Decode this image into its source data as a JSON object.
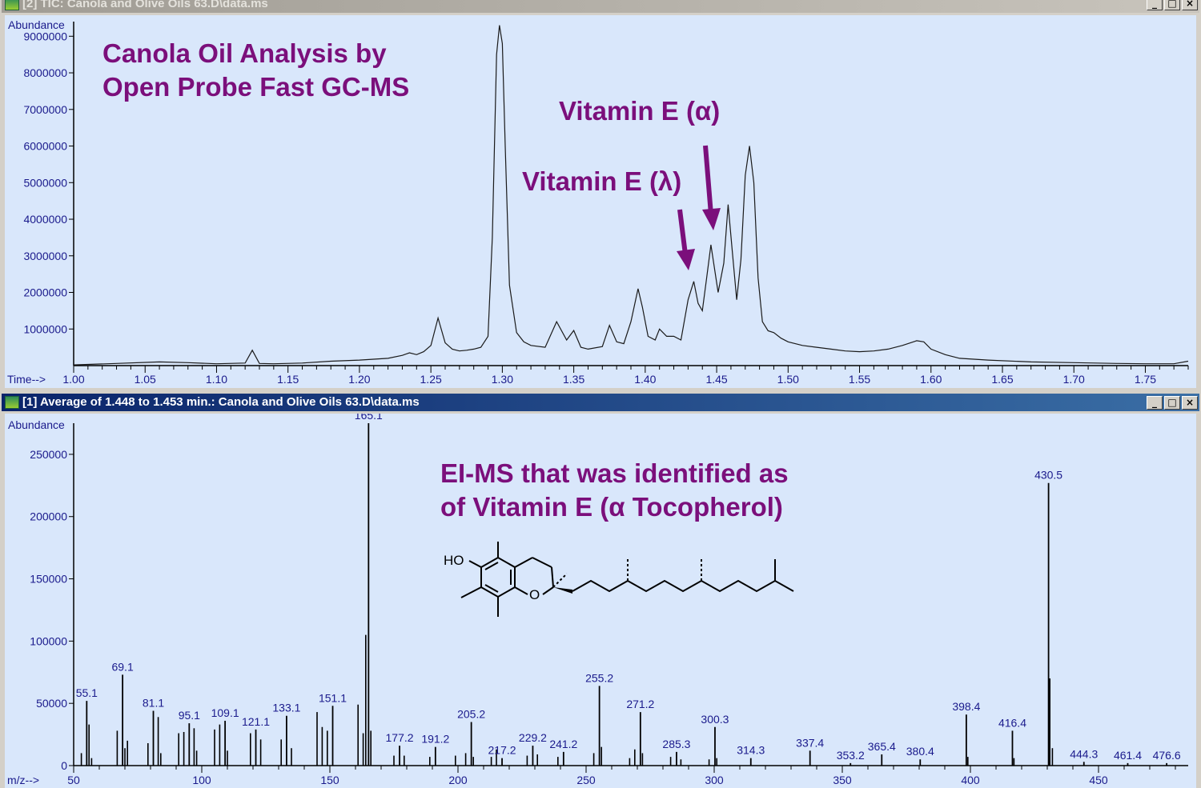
{
  "top_window": {
    "title": "[2]  TIC: Canola and Olive Oils 63.D\\data.ms",
    "buttons": [
      "_",
      "□",
      "×"
    ]
  },
  "bottom_window": {
    "title": "[1] Average of 1.448 to 1.453 min.: Canola and Olive Oils 63.D\\data.ms",
    "buttons": [
      "_",
      "□",
      "×"
    ]
  },
  "annotations": {
    "title_line1": "Canola Oil Analysis by",
    "title_line2": "Open Probe Fast GC-MS",
    "vitamin_alpha": "Vitamin E (α)",
    "vitamin_lambda": "Vitamin E (λ)",
    "ms_line1": "EI-MS that was identified as",
    "ms_line2": "of Vitamin E (α Tocopherol)",
    "structure_ho": "HO",
    "structure_o": "O",
    "arrow_color": "#7b0f7b"
  },
  "chart_data": [
    {
      "type": "line",
      "xlabel": "Time-->",
      "ylabel": "Abundance",
      "xlim": [
        1.0,
        1.78
      ],
      "ylim": [
        0,
        9400000
      ],
      "xticks": [
        "1.00",
        "1.05",
        "1.10",
        "1.15",
        "1.20",
        "1.25",
        "1.30",
        "1.35",
        "1.40",
        "1.45",
        "1.50",
        "1.55",
        "1.60",
        "1.65",
        "1.70",
        "1.75"
      ],
      "yticks": [
        "1000000",
        "2000000",
        "3000000",
        "4000000",
        "5000000",
        "6000000",
        "7000000",
        "8000000",
        "9000000"
      ],
      "series": [
        {
          "x": [
            1.0,
            1.03,
            1.06,
            1.08,
            1.1,
            1.12,
            1.125,
            1.13,
            1.14,
            1.16,
            1.18,
            1.2,
            1.22,
            1.23,
            1.235,
            1.24,
            1.245,
            1.25,
            1.255,
            1.26,
            1.265,
            1.27,
            1.275,
            1.28,
            1.285,
            1.29,
            1.293,
            1.296,
            1.298,
            1.3,
            1.302,
            1.305,
            1.31,
            1.315,
            1.32,
            1.33,
            1.338,
            1.345,
            1.35,
            1.355,
            1.36,
            1.37,
            1.375,
            1.38,
            1.385,
            1.39,
            1.395,
            1.398,
            1.402,
            1.407,
            1.41,
            1.415,
            1.42,
            1.425,
            1.43,
            1.434,
            1.437,
            1.44,
            1.443,
            1.446,
            1.451,
            1.455,
            1.458,
            1.461,
            1.464,
            1.467,
            1.47,
            1.473,
            1.476,
            1.479,
            1.482,
            1.486,
            1.49,
            1.495,
            1.5,
            1.51,
            1.52,
            1.53,
            1.54,
            1.55,
            1.56,
            1.57,
            1.58,
            1.59,
            1.595,
            1.6,
            1.61,
            1.62,
            1.64,
            1.67,
            1.7,
            1.73,
            1.75,
            1.77,
            1.78
          ],
          "y": [
            20000,
            60000,
            100000,
            80000,
            50000,
            70000,
            420000,
            60000,
            50000,
            70000,
            120000,
            150000,
            200000,
            280000,
            350000,
            300000,
            380000,
            550000,
            1300000,
            620000,
            450000,
            400000,
            420000,
            450000,
            500000,
            800000,
            3500000,
            8500000,
            9300000,
            8800000,
            6000000,
            2200000,
            900000,
            650000,
            550000,
            500000,
            1200000,
            700000,
            960000,
            500000,
            450000,
            520000,
            1100000,
            650000,
            600000,
            1200000,
            2100000,
            1600000,
            800000,
            700000,
            1000000,
            800000,
            800000,
            700000,
            1800000,
            2300000,
            1700000,
            1500000,
            2400000,
            3300000,
            2000000,
            2800000,
            4400000,
            3100000,
            1800000,
            2900000,
            5200000,
            6000000,
            5000000,
            2400000,
            1200000,
            950000,
            900000,
            750000,
            650000,
            550000,
            500000,
            450000,
            400000,
            380000,
            400000,
            450000,
            550000,
            680000,
            650000,
            450000,
            300000,
            200000,
            150000,
            100000,
            80000,
            60000,
            50000,
            50000,
            120000
          ]
        }
      ]
    },
    {
      "type": "bar",
      "xlabel": "m/z-->",
      "ylabel": "Abundance",
      "xlim": [
        50,
        485
      ],
      "ylim": [
        0,
        275000
      ],
      "xticks": [
        "50",
        "100",
        "150",
        "200",
        "250",
        "300",
        "350",
        "400",
        "450"
      ],
      "yticks": [
        "0",
        "50000",
        "100000",
        "150000",
        "200000",
        "250000"
      ],
      "labeled_peaks": [
        {
          "label": "55.1",
          "x": 55.1,
          "y": 52000
        },
        {
          "label": "69.1",
          "x": 69.1,
          "y": 73000
        },
        {
          "label": "81.1",
          "x": 81.1,
          "y": 44000
        },
        {
          "label": "95.1",
          "x": 95.1,
          "y": 34000
        },
        {
          "label": "109.1",
          "x": 109.1,
          "y": 36000
        },
        {
          "label": "121.1",
          "x": 121.1,
          "y": 29000
        },
        {
          "label": "133.1",
          "x": 133.1,
          "y": 40000
        },
        {
          "label": "151.1",
          "x": 151.1,
          "y": 48000
        },
        {
          "label": "165.1",
          "x": 165.1,
          "y": 275000
        },
        {
          "label": "177.2",
          "x": 177.2,
          "y": 16000
        },
        {
          "label": "191.2",
          "x": 191.2,
          "y": 15000
        },
        {
          "label": "205.2",
          "x": 205.2,
          "y": 35000
        },
        {
          "label": "217.2",
          "x": 217.2,
          "y": 6000
        },
        {
          "label": "229.2",
          "x": 229.2,
          "y": 16000
        },
        {
          "label": "241.2",
          "x": 241.2,
          "y": 11000
        },
        {
          "label": "255.2",
          "x": 255.2,
          "y": 64000
        },
        {
          "label": "271.2",
          "x": 271.2,
          "y": 43000
        },
        {
          "label": "285.3",
          "x": 285.3,
          "y": 11000
        },
        {
          "label": "300.3",
          "x": 300.3,
          "y": 31000
        },
        {
          "label": "314.3",
          "x": 314.3,
          "y": 6000
        },
        {
          "label": "337.4",
          "x": 337.4,
          "y": 12000
        },
        {
          "label": "353.2",
          "x": 353.2,
          "y": 2000
        },
        {
          "label": "365.4",
          "x": 365.4,
          "y": 9000
        },
        {
          "label": "380.4",
          "x": 380.4,
          "y": 5000
        },
        {
          "label": "398.4",
          "x": 398.4,
          "y": 41000
        },
        {
          "label": "416.4",
          "x": 416.4,
          "y": 28000
        },
        {
          "label": "430.5",
          "x": 430.5,
          "y": 227000
        },
        {
          "label": "444.3",
          "x": 444.3,
          "y": 3000
        },
        {
          "label": "461.4",
          "x": 461.4,
          "y": 2000
        },
        {
          "label": "476.6",
          "x": 476.6,
          "y": 2000
        }
      ],
      "minor_peaks": [
        {
          "x": 53,
          "y": 10000
        },
        {
          "x": 56,
          "y": 33000
        },
        {
          "x": 57,
          "y": 6000
        },
        {
          "x": 67,
          "y": 28000
        },
        {
          "x": 70,
          "y": 14000
        },
        {
          "x": 71,
          "y": 20000
        },
        {
          "x": 79,
          "y": 18000
        },
        {
          "x": 83,
          "y": 39000
        },
        {
          "x": 84,
          "y": 10000
        },
        {
          "x": 91,
          "y": 26000
        },
        {
          "x": 93,
          "y": 27000
        },
        {
          "x": 97,
          "y": 30000
        },
        {
          "x": 98,
          "y": 12000
        },
        {
          "x": 105,
          "y": 29000
        },
        {
          "x": 107,
          "y": 33000
        },
        {
          "x": 110,
          "y": 12000
        },
        {
          "x": 119,
          "y": 26000
        },
        {
          "x": 123,
          "y": 21000
        },
        {
          "x": 131,
          "y": 21000
        },
        {
          "x": 135,
          "y": 14000
        },
        {
          "x": 145,
          "y": 43000
        },
        {
          "x": 147,
          "y": 31000
        },
        {
          "x": 149,
          "y": 28000
        },
        {
          "x": 161,
          "y": 49000
        },
        {
          "x": 163,
          "y": 26000
        },
        {
          "x": 164,
          "y": 105000
        },
        {
          "x": 166,
          "y": 28000
        },
        {
          "x": 175,
          "y": 8000
        },
        {
          "x": 179,
          "y": 8000
        },
        {
          "x": 189,
          "y": 7000
        },
        {
          "x": 199,
          "y": 8000
        },
        {
          "x": 203,
          "y": 10000
        },
        {
          "x": 206,
          "y": 7000
        },
        {
          "x": 213,
          "y": 7000
        },
        {
          "x": 215,
          "y": 13000
        },
        {
          "x": 227,
          "y": 8000
        },
        {
          "x": 231,
          "y": 9000
        },
        {
          "x": 239,
          "y": 7000
        },
        {
          "x": 253,
          "y": 10000
        },
        {
          "x": 256,
          "y": 15000
        },
        {
          "x": 267,
          "y": 6000
        },
        {
          "x": 269,
          "y": 13000
        },
        {
          "x": 272,
          "y": 10000
        },
        {
          "x": 283,
          "y": 7000
        },
        {
          "x": 287,
          "y": 5000
        },
        {
          "x": 298,
          "y": 5000
        },
        {
          "x": 301,
          "y": 6000
        },
        {
          "x": 399,
          "y": 7000
        },
        {
          "x": 417,
          "y": 6000
        },
        {
          "x": 431,
          "y": 70000
        },
        {
          "x": 432,
          "y": 14000
        }
      ]
    }
  ]
}
